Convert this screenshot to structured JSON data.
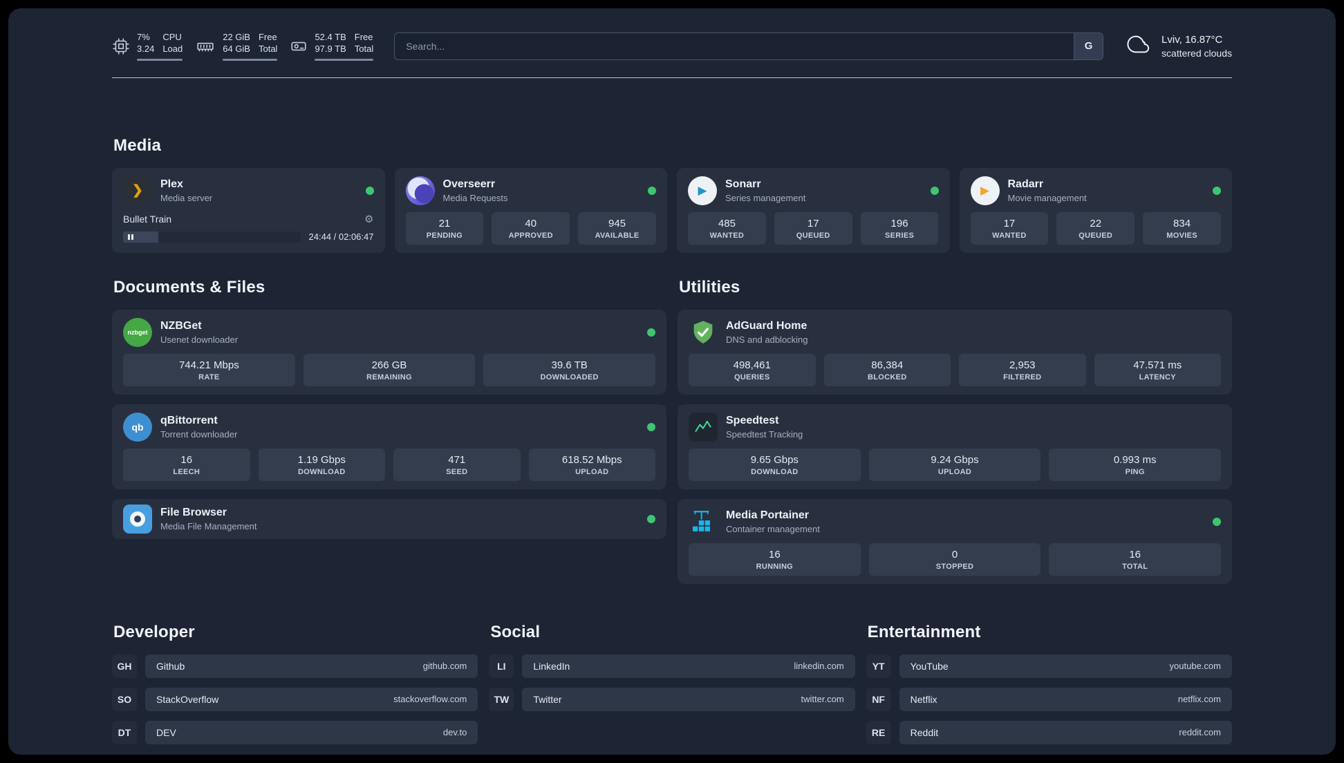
{
  "icons": {
    "gear": "⚙",
    "plex_glyph": "❯",
    "sonarr_glyph": "▶",
    "radarr_glyph": "▶",
    "nzbget_text": "nzbget",
    "qbittorrent_text": "qb"
  },
  "topbar": {
    "cpu": {
      "value1": "7%",
      "value2": "3.24",
      "label1": "CPU",
      "label2": "Load"
    },
    "ram": {
      "value1": "22 GiB",
      "value2": "64 GiB",
      "label1": "Free",
      "label2": "Total"
    },
    "disk": {
      "value1": "52.4 TB",
      "value2": "97.9 TB",
      "label1": "Free",
      "label2": "Total"
    },
    "search": {
      "placeholder": "Search...",
      "engine_label": "G"
    },
    "weather": {
      "location": "Lviv, 16.87°C",
      "condition": "scattered clouds"
    }
  },
  "sections": {
    "media": {
      "title": "Media",
      "cards": [
        {
          "title": "Plex",
          "subtitle": "Media server",
          "status": "online",
          "player": {
            "track": "Bullet Train",
            "time": "24:44 / 02:06:47",
            "progress_pct": 20
          }
        },
        {
          "title": "Overseerr",
          "subtitle": "Media Requests",
          "status": "online",
          "stats": [
            {
              "value": "21",
              "label": "PENDING"
            },
            {
              "value": "40",
              "label": "APPROVED"
            },
            {
              "value": "945",
              "label": "AVAILABLE"
            }
          ]
        },
        {
          "title": "Sonarr",
          "subtitle": "Series management",
          "status": "online",
          "stats": [
            {
              "value": "485",
              "label": "WANTED"
            },
            {
              "value": "17",
              "label": "QUEUED"
            },
            {
              "value": "196",
              "label": "SERIES"
            }
          ]
        },
        {
          "title": "Radarr",
          "subtitle": "Movie management",
          "status": "online",
          "stats": [
            {
              "value": "17",
              "label": "WANTED"
            },
            {
              "value": "22",
              "label": "QUEUED"
            },
            {
              "value": "834",
              "label": "MOVIES"
            }
          ]
        }
      ]
    },
    "documents": {
      "title": "Documents & Files",
      "cards": [
        {
          "title": "NZBGet",
          "subtitle": "Usenet downloader",
          "status": "online",
          "stats": [
            {
              "value": "744.21 Mbps",
              "label": "RATE"
            },
            {
              "value": "266 GB",
              "label": "REMAINING"
            },
            {
              "value": "39.6 TB",
              "label": "DOWNLOADED"
            }
          ]
        },
        {
          "title": "qBittorrent",
          "subtitle": "Torrent downloader",
          "status": "online",
          "stats": [
            {
              "value": "16",
              "label": "LEECH"
            },
            {
              "value": "1.19 Gbps",
              "label": "DOWNLOAD"
            },
            {
              "value": "471",
              "label": "SEED"
            },
            {
              "value": "618.52 Mbps",
              "label": "UPLOAD"
            }
          ]
        },
        {
          "title": "File Browser",
          "subtitle": "Media File Management",
          "status": "online"
        }
      ]
    },
    "utilities": {
      "title": "Utilities",
      "cards": [
        {
          "title": "AdGuard Home",
          "subtitle": "DNS and adblocking",
          "stats": [
            {
              "value": "498,461",
              "label": "QUERIES"
            },
            {
              "value": "86,384",
              "label": "BLOCKED"
            },
            {
              "value": "2,953",
              "label": "FILTERED"
            },
            {
              "value": "47.571 ms",
              "label": "LATENCY"
            }
          ]
        },
        {
          "title": "Speedtest",
          "subtitle": "Speedtest Tracking",
          "stats": [
            {
              "value": "9.65 Gbps",
              "label": "DOWNLOAD"
            },
            {
              "value": "9.24 Gbps",
              "label": "UPLOAD"
            },
            {
              "value": "0.993 ms",
              "label": "PING"
            }
          ]
        },
        {
          "title": "Media Portainer",
          "subtitle": "Container management",
          "status": "online",
          "stats": [
            {
              "value": "16",
              "label": "RUNNING"
            },
            {
              "value": "0",
              "label": "STOPPED"
            },
            {
              "value": "16",
              "label": "TOTAL"
            }
          ]
        }
      ]
    },
    "developer": {
      "title": "Developer",
      "bookmarks": [
        {
          "abbr": "GH",
          "name": "Github",
          "url": "github.com"
        },
        {
          "abbr": "SO",
          "name": "StackOverflow",
          "url": "stackoverflow.com"
        },
        {
          "abbr": "DT",
          "name": "DEV",
          "url": "dev.to"
        }
      ]
    },
    "social": {
      "title": "Social",
      "bookmarks": [
        {
          "abbr": "LI",
          "name": "LinkedIn",
          "url": "linkedin.com"
        },
        {
          "abbr": "TW",
          "name": "Twitter",
          "url": "twitter.com"
        }
      ]
    },
    "entertainment": {
      "title": "Entertainment",
      "bookmarks": [
        {
          "abbr": "YT",
          "name": "YouTube",
          "url": "youtube.com"
        },
        {
          "abbr": "NF",
          "name": "Netflix",
          "url": "netflix.com"
        },
        {
          "abbr": "RE",
          "name": "Reddit",
          "url": "reddit.com"
        }
      ]
    }
  },
  "colors": {
    "accent_green": "#3fc571",
    "background": "#1d2433",
    "card": "#28303f"
  }
}
